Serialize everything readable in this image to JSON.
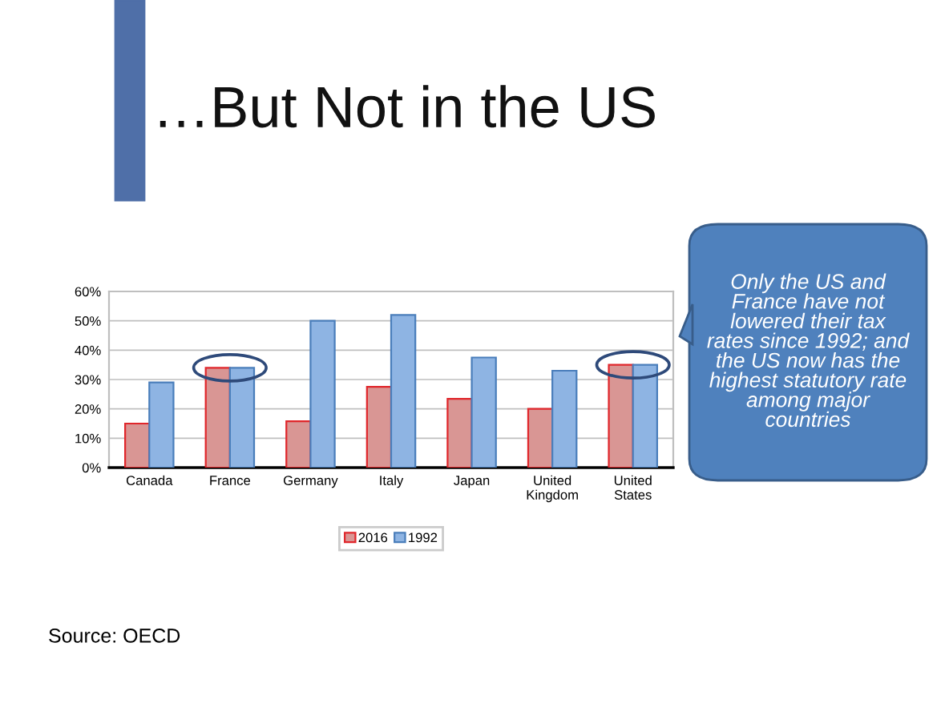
{
  "chart_data": {
    "type": "bar",
    "title": "…But Not in the US",
    "categories": [
      "Canada",
      "France",
      "Germany",
      "Italy",
      "Japan",
      "United\nKingdom",
      "United\nStates"
    ],
    "series": [
      {
        "name": "2016",
        "color": "#d99694",
        "values": [
          15,
          34,
          15.8,
          27.5,
          23.4,
          20,
          35
        ]
      },
      {
        "name": "1992",
        "color": "#8eb4e3",
        "values": [
          29,
          34,
          50,
          52,
          37.5,
          33,
          35
        ]
      }
    ],
    "ylim": [
      0,
      60
    ],
    "yticks": [
      {
        "value": 0,
        "label": "0%"
      },
      {
        "value": 10,
        "label": "10%"
      },
      {
        "value": 20,
        "label": "20%"
      },
      {
        "value": 30,
        "label": "30%"
      },
      {
        "value": 40,
        "label": "40%"
      },
      {
        "value": 50,
        "label": "50%"
      },
      {
        "value": 60,
        "label": "60%"
      }
    ],
    "grid": "y",
    "legend": "bottom",
    "annotations": [
      "Only the US and France have not lowered their tax rates since 1992; and the US now has the highest statutory rate among major countries",
      "Source: OECD"
    ]
  }
}
